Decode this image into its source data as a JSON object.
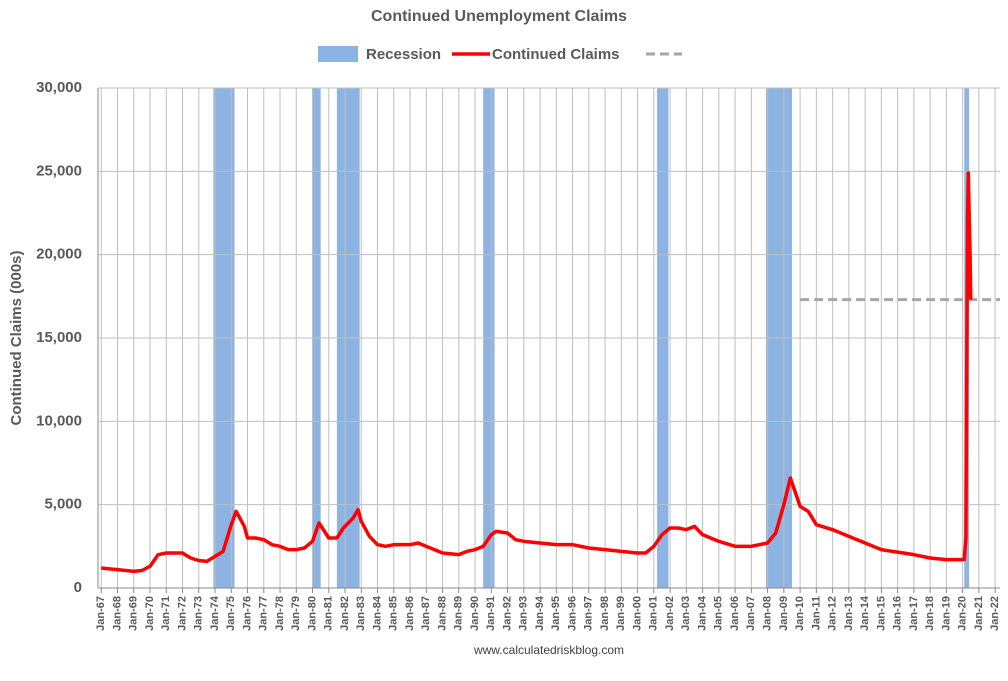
{
  "chart_data": {
    "type": "line",
    "title": "Continued Unemployment Claims",
    "y_label": "Continued Claims (000s)",
    "source": "www.calculatedriskblog.com",
    "grid": true,
    "legend_position": "top",
    "xlim": [
      1966.8,
      2022.3
    ],
    "ylim": [
      0,
      30000
    ],
    "yticks": [
      0,
      {
        "value": 5000,
        "label": "5,000"
      },
      {
        "value": 10000,
        "label": "10,000"
      },
      {
        "value": 15000,
        "label": "15,000"
      },
      {
        "value": 20000,
        "label": "20,000"
      },
      {
        "value": 25000,
        "label": "25,000"
      },
      {
        "value": 30000,
        "label": "30,000"
      }
    ],
    "xticks": [
      {
        "value": 1967,
        "label": "Jan-67"
      },
      {
        "value": 1968,
        "label": "Jan-68"
      },
      {
        "value": 1969,
        "label": "Jan-69"
      },
      {
        "value": 1970,
        "label": "Jan-70"
      },
      {
        "value": 1971,
        "label": "Jan-71"
      },
      {
        "value": 1972,
        "label": "Jan-72"
      },
      {
        "value": 1973,
        "label": "Jan-73"
      },
      {
        "value": 1974,
        "label": "Jan-74"
      },
      {
        "value": 1975,
        "label": "Jan-75"
      },
      {
        "value": 1976,
        "label": "Jan-76"
      },
      {
        "value": 1977,
        "label": "Jan-77"
      },
      {
        "value": 1978,
        "label": "Jan-78"
      },
      {
        "value": 1979,
        "label": "Jan-79"
      },
      {
        "value": 1980,
        "label": "Jan-80"
      },
      {
        "value": 1981,
        "label": "Jan-81"
      },
      {
        "value": 1982,
        "label": "Jan-82"
      },
      {
        "value": 1983,
        "label": "Jan-83"
      },
      {
        "value": 1984,
        "label": "Jan-84"
      },
      {
        "value": 1985,
        "label": "Jan-85"
      },
      {
        "value": 1986,
        "label": "Jan-86"
      },
      {
        "value": 1987,
        "label": "Jan-87"
      },
      {
        "value": 1988,
        "label": "Jan-88"
      },
      {
        "value": 1989,
        "label": "Jan-89"
      },
      {
        "value": 1990,
        "label": "Jan-90"
      },
      {
        "value": 1991,
        "label": "Jan-91"
      },
      {
        "value": 1992,
        "label": "Jan-92"
      },
      {
        "value": 1993,
        "label": "Jan-93"
      },
      {
        "value": 1994,
        "label": "Jan-94"
      },
      {
        "value": 1995,
        "label": "Jan-95"
      },
      {
        "value": 1996,
        "label": "Jan-96"
      },
      {
        "value": 1997,
        "label": "Jan-97"
      },
      {
        "value": 1998,
        "label": "Jan-98"
      },
      {
        "value": 1999,
        "label": "Jan-99"
      },
      {
        "value": 2000,
        "label": "Jan-00"
      },
      {
        "value": 2001,
        "label": "Jan-01"
      },
      {
        "value": 2002,
        "label": "Jan-02"
      },
      {
        "value": 2003,
        "label": "Jan-03"
      },
      {
        "value": 2004,
        "label": "Jan-04"
      },
      {
        "value": 2005,
        "label": "Jan-05"
      },
      {
        "value": 2006,
        "label": "Jan-06"
      },
      {
        "value": 2007,
        "label": "Jan-07"
      },
      {
        "value": 2008,
        "label": "Jan-08"
      },
      {
        "value": 2009,
        "label": "Jan-09"
      },
      {
        "value": 2010,
        "label": "Jan-10"
      },
      {
        "value": 2011,
        "label": "Jan-11"
      },
      {
        "value": 2012,
        "label": "Jan-12"
      },
      {
        "value": 2013,
        "label": "Jan-13"
      },
      {
        "value": 2014,
        "label": "Jan-14"
      },
      {
        "value": 2015,
        "label": "Jan-15"
      },
      {
        "value": 2016,
        "label": "Jan-16"
      },
      {
        "value": 2017,
        "label": "Jan-17"
      },
      {
        "value": 2018,
        "label": "Jan-18"
      },
      {
        "value": 2019,
        "label": "Jan-19"
      },
      {
        "value": 2020,
        "label": "Jan-20"
      },
      {
        "value": 2021,
        "label": "Jan-21"
      },
      {
        "value": 2022,
        "label": "Jan-22"
      }
    ],
    "recessions": {
      "name": "Recession",
      "color": "#8db3e2",
      "periods": [
        [
          1973.9,
          1975.2
        ],
        [
          1980.0,
          1980.5
        ],
        [
          1981.5,
          1982.9
        ],
        [
          1990.5,
          1991.2
        ],
        [
          2001.2,
          2001.9
        ],
        [
          2007.9,
          2009.5
        ],
        [
          2020.1,
          2020.4
        ]
      ]
    },
    "reference_line": {
      "value": 17300,
      "x_start": 2010,
      "color": "#a6a6a6"
    },
    "series": [
      {
        "name": "Continued Claims",
        "color": "#ff0000",
        "x": [
          1967,
          1967.5,
          1968,
          1968.5,
          1969,
          1969.5,
          1970,
          1970.5,
          1971,
          1971.5,
          1972,
          1972.5,
          1973,
          1973.5,
          1974,
          1974.5,
          1975,
          1975.3,
          1975.8,
          1976,
          1976.5,
          1977,
          1977.5,
          1978,
          1978.5,
          1979,
          1979.5,
          1980,
          1980.4,
          1980.8,
          1981,
          1981.5,
          1981.9,
          1982.5,
          1982.8,
          1983,
          1983.5,
          1984,
          1984.5,
          1985,
          1986,
          1986.5,
          1987,
          1987.5,
          1988,
          1989,
          1989.5,
          1990,
          1990.5,
          1991,
          1991.3,
          1992,
          1992.5,
          1993,
          1994,
          1995,
          1996,
          1997,
          1998,
          1999,
          2000,
          2000.5,
          2001,
          2001.5,
          2002,
          2002.5,
          2003,
          2003.5,
          2004,
          2005,
          2006,
          2007,
          2008,
          2008.5,
          2009,
          2009.4,
          2010,
          2010.5,
          2011,
          2012,
          2013,
          2014,
          2015,
          2016,
          2017,
          2018,
          2019,
          2020.1,
          2020.2,
          2020.3,
          2020.35,
          2020.4,
          2020.45,
          2020.5
        ],
        "values": [
          1200,
          1150,
          1100,
          1050,
          1000,
          1050,
          1300,
          2000,
          2100,
          2100,
          2100,
          1800,
          1650,
          1600,
          1900,
          2200,
          3800,
          4600,
          3700,
          3000,
          3000,
          2900,
          2600,
          2500,
          2300,
          2300,
          2400,
          2800,
          3900,
          3300,
          3000,
          3000,
          3600,
          4200,
          4700,
          4000,
          3100,
          2600,
          2500,
          2600,
          2600,
          2700,
          2500,
          2300,
          2100,
          2000,
          2200,
          2300,
          2500,
          3200,
          3400,
          3300,
          2900,
          2800,
          2700,
          2600,
          2600,
          2400,
          2300,
          2200,
          2100,
          2100,
          2500,
          3200,
          3600,
          3600,
          3500,
          3700,
          3200,
          2800,
          2500,
          2500,
          2700,
          3300,
          5000,
          6600,
          4900,
          4600,
          3800,
          3500,
          3100,
          2700,
          2300,
          2150,
          2000,
          1800,
          1700,
          1700,
          3000,
          22000,
          24900,
          22500,
          20500,
          17300
        ]
      }
    ]
  }
}
